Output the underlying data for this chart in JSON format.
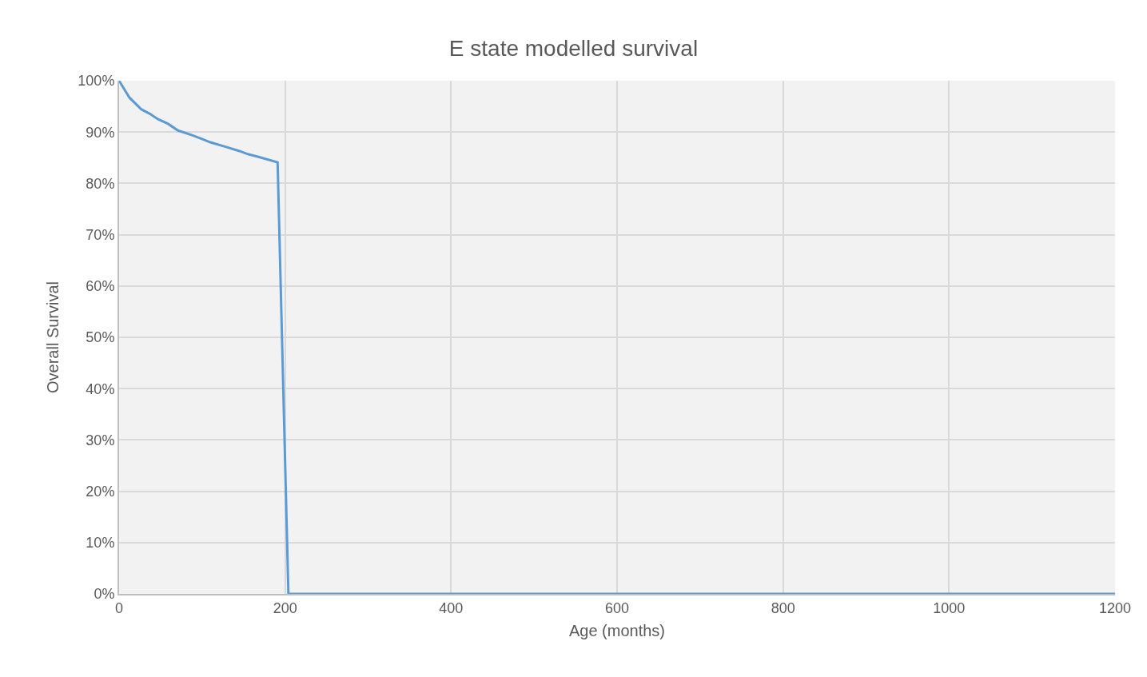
{
  "chart_data": {
    "type": "line",
    "title": "E state modelled survival",
    "xlabel": "Age (months)",
    "ylabel": "Overall Survival",
    "x": [
      0,
      12.5,
      27,
      36.6,
      47,
      59,
      71,
      88,
      110,
      129,
      145,
      155,
      167,
      191,
      204,
      1200
    ],
    "series": [
      {
        "color": "#5b9bd5",
        "values": [
          1,
          0.967,
          0.944,
          0.936,
          0.925,
          0.916,
          0.903,
          0.894,
          0.88,
          0.871,
          0.863,
          0.857,
          0.852,
          0.841,
          0,
          0
        ]
      }
    ],
    "xlim": [
      0,
      1200
    ],
    "xticks": [
      0,
      200,
      400,
      600,
      800,
      1000,
      1200
    ],
    "ylim": [
      0,
      1
    ],
    "yticks": [
      {
        "value": 0,
        "label": "0%"
      },
      {
        "value": 0.1,
        "label": "10%"
      },
      {
        "value": 0.2,
        "label": "20%"
      },
      {
        "value": 0.3,
        "label": "30%"
      },
      {
        "value": 0.4,
        "label": "40%"
      },
      {
        "value": 0.5,
        "label": "50%"
      },
      {
        "value": 0.6,
        "label": "60%"
      },
      {
        "value": 0.7,
        "label": "70%"
      },
      {
        "value": 0.8,
        "label": "80%"
      },
      {
        "value": 0.9,
        "label": "90%"
      },
      {
        "value": 1,
        "label": "100%"
      }
    ],
    "grid": true,
    "marker": "none",
    "line_style": "solid"
  }
}
